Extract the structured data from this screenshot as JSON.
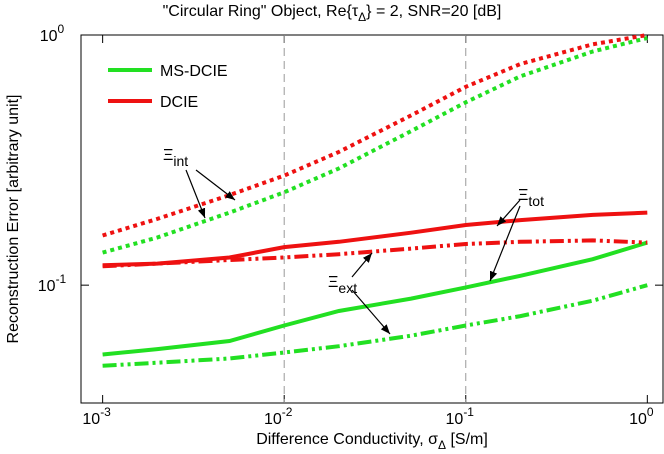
{
  "chart_data": {
    "type": "line",
    "title": [
      "\"Circular Ring\" Object, Re{τ",
      "Δ",
      "} = 2, SNR=20 [dB]"
    ],
    "x_label": [
      "Difference Conductivity, σ",
      "Δ",
      " [S/m]"
    ],
    "y_label": "Reconstruction Error [arbitrary unit]",
    "x_scale": "log",
    "y_scale": "log",
    "xlim": [
      0.00076,
      1.22
    ],
    "ylim": [
      0.0338,
      1.0
    ],
    "xticks": [
      {
        "value": 0.001,
        "label": [
          "10",
          "-3"
        ]
      },
      {
        "value": 0.01,
        "label": [
          "10",
          "-2"
        ]
      },
      {
        "value": 0.1,
        "label": [
          "10",
          "-1"
        ]
      },
      {
        "value": 1,
        "label": [
          "10",
          "0"
        ]
      }
    ],
    "yticks": [
      {
        "value": 0.1,
        "label": [
          "10",
          "-1"
        ]
      },
      {
        "value": 1,
        "label": [
          "10",
          "0"
        ]
      }
    ],
    "grid": "x-interior",
    "legend": "top-left",
    "x": [
      0.001,
      0.002,
      0.005,
      0.01,
      0.02,
      0.05,
      0.1,
      0.2,
      0.5,
      1
    ],
    "series": [
      {
        "name": "MS-DCIE",
        "color": "#22e022",
        "lines": [
          {
            "dash": "dotted",
            "values": [
              0.135,
              0.155,
              0.195,
              0.235,
              0.293,
              0.413,
              0.538,
              0.684,
              0.859,
              0.973
            ]
          },
          {
            "dash": "solid",
            "values": [
              0.0528,
              0.0555,
              0.0598,
              0.069,
              0.0788,
              0.0884,
              0.098,
              0.109,
              0.127,
              0.148
            ]
          },
          {
            "dash": "dashdotdot",
            "values": [
              0.0476,
              0.049,
              0.0509,
              0.0538,
              0.057,
              0.0628,
              0.069,
              0.0752,
              0.0867,
              0.1
            ]
          }
        ]
      },
      {
        "name": "DCIE",
        "color": "#ee1111",
        "lines": [
          {
            "dash": "dotted",
            "values": [
              0.158,
              0.184,
              0.229,
              0.274,
              0.341,
              0.477,
              0.621,
              0.766,
              0.918,
              1.0
            ]
          },
          {
            "dash": "solid",
            "values": [
              0.12,
              0.122,
              0.129,
              0.142,
              0.149,
              0.162,
              0.174,
              0.182,
              0.191,
              0.195
            ]
          },
          {
            "dash": "dashdotdot",
            "values": [
              0.119,
              0.122,
              0.126,
              0.129,
              0.133,
              0.14,
              0.146,
              0.149,
              0.151,
              0.148
            ]
          }
        ]
      }
    ],
    "annotations": [
      {
        "symbol": "Ξ",
        "subscript": "int"
      },
      {
        "symbol": "Ξ",
        "subscript": "tot"
      },
      {
        "symbol": "Ξ",
        "subscript": "ext"
      }
    ]
  }
}
